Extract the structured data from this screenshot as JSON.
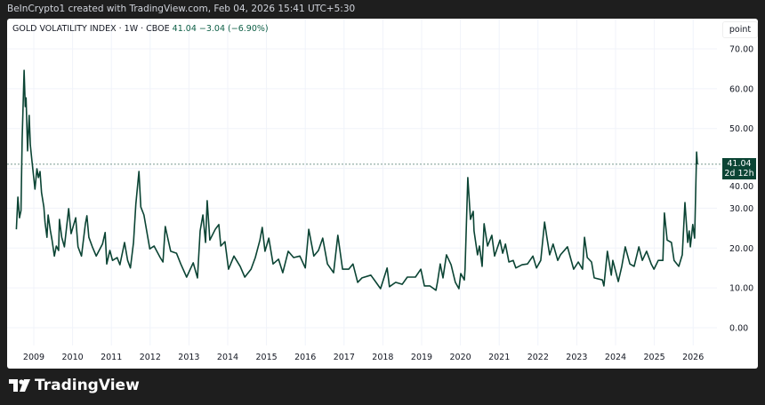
{
  "header": {
    "attribution": "BeInCrypto1 created with TradingView.com, Feb 04, 2026 15:41 UTC+5:30"
  },
  "legend": {
    "symbol": "GOLD VOLATILITY INDEX · 1W · CBOE",
    "last": "41.04",
    "change": "−3.04 (−6.90%)"
  },
  "axis_unit": "point",
  "price_label": {
    "value": "41.04",
    "countdown": "2d 12h"
  },
  "brand": "TradingView",
  "colors": {
    "line": "#0b4434",
    "price_box": "#0b4434",
    "change_text": "#0c5e45"
  },
  "chart_data": {
    "type": "line",
    "title": "GOLD VOLATILITY INDEX · 1W · CBOE",
    "xlabel": "",
    "ylabel": "point",
    "ylim": [
      -3,
      72
    ],
    "xlim": [
      2008.45,
      2026.6
    ],
    "grid": true,
    "y_ticks": [
      "0.00",
      "10.00",
      "20.00",
      "30.00",
      "40.00",
      "50.00",
      "60.00",
      "70.00"
    ],
    "x_ticks": [
      "2009",
      "2010",
      "2011",
      "2012",
      "2013",
      "2014",
      "2015",
      "2016",
      "2017",
      "2018",
      "2019",
      "2020",
      "2021",
      "2022",
      "2023",
      "2024",
      "2025",
      "2026"
    ],
    "last_value_line": 41.04,
    "series": [
      {
        "points": [
          [
            2008.55,
            24.7
          ],
          [
            2008.59,
            32.8
          ],
          [
            2008.63,
            27.6
          ],
          [
            2008.67,
            29.4
          ],
          [
            2008.7,
            47.3
          ],
          [
            2008.75,
            64.6
          ],
          [
            2008.78,
            55.5
          ],
          [
            2008.8,
            57.7
          ],
          [
            2008.84,
            44.4
          ],
          [
            2008.88,
            53.3
          ],
          [
            2008.91,
            45.9
          ],
          [
            2008.95,
            42.1
          ],
          [
            2009.03,
            34.8
          ],
          [
            2009.08,
            39.9
          ],
          [
            2009.12,
            37.7
          ],
          [
            2009.16,
            39.2
          ],
          [
            2009.2,
            33.9
          ],
          [
            2009.26,
            30.3
          ],
          [
            2009.29,
            26.5
          ],
          [
            2009.34,
            22.7
          ],
          [
            2009.37,
            28.3
          ],
          [
            2009.43,
            24.3
          ],
          [
            2009.47,
            22.0
          ],
          [
            2009.53,
            18.0
          ],
          [
            2009.58,
            20.5
          ],
          [
            2009.64,
            19.4
          ],
          [
            2009.66,
            27.2
          ],
          [
            2009.72,
            22.7
          ],
          [
            2009.79,
            20.3
          ],
          [
            2009.9,
            29.9
          ],
          [
            2009.96,
            23.6
          ],
          [
            2010.03,
            25.9
          ],
          [
            2010.08,
            27.6
          ],
          [
            2010.14,
            20.3
          ],
          [
            2010.23,
            18.0
          ],
          [
            2010.33,
            26.1
          ],
          [
            2010.37,
            28.1
          ],
          [
            2010.42,
            22.7
          ],
          [
            2010.51,
            20.3
          ],
          [
            2010.61,
            18.0
          ],
          [
            2010.77,
            21.0
          ],
          [
            2010.84,
            23.9
          ],
          [
            2010.88,
            16.0
          ],
          [
            2010.96,
            19.4
          ],
          [
            2011.03,
            16.9
          ],
          [
            2011.15,
            17.6
          ],
          [
            2011.22,
            15.8
          ],
          [
            2011.34,
            21.4
          ],
          [
            2011.42,
            16.9
          ],
          [
            2011.49,
            15.0
          ],
          [
            2011.57,
            21.4
          ],
          [
            2011.63,
            31.0
          ],
          [
            2011.71,
            39.2
          ],
          [
            2011.76,
            30.3
          ],
          [
            2011.84,
            28.3
          ],
          [
            2011.91,
            24.3
          ],
          [
            2011.99,
            19.8
          ],
          [
            2012.1,
            20.5
          ],
          [
            2012.26,
            17.6
          ],
          [
            2012.33,
            16.5
          ],
          [
            2012.39,
            25.4
          ],
          [
            2012.45,
            22.7
          ],
          [
            2012.53,
            19.2
          ],
          [
            2012.68,
            18.7
          ],
          [
            2012.79,
            16.0
          ],
          [
            2012.94,
            12.7
          ],
          [
            2013.11,
            16.3
          ],
          [
            2013.22,
            12.5
          ],
          [
            2013.29,
            24.3
          ],
          [
            2013.36,
            28.3
          ],
          [
            2013.43,
            21.4
          ],
          [
            2013.47,
            31.9
          ],
          [
            2013.54,
            22.0
          ],
          [
            2013.68,
            24.7
          ],
          [
            2013.77,
            25.9
          ],
          [
            2013.82,
            20.5
          ],
          [
            2013.93,
            21.6
          ],
          [
            2014.02,
            14.7
          ],
          [
            2014.16,
            18.0
          ],
          [
            2014.32,
            15.4
          ],
          [
            2014.44,
            12.7
          ],
          [
            2014.6,
            14.7
          ],
          [
            2014.71,
            17.6
          ],
          [
            2014.83,
            22.0
          ],
          [
            2014.89,
            25.2
          ],
          [
            2014.96,
            19.2
          ],
          [
            2015.06,
            22.5
          ],
          [
            2015.17,
            16.0
          ],
          [
            2015.31,
            17.2
          ],
          [
            2015.42,
            13.8
          ],
          [
            2015.56,
            19.2
          ],
          [
            2015.7,
            17.6
          ],
          [
            2015.86,
            18.0
          ],
          [
            2016.0,
            15.0
          ],
          [
            2016.09,
            24.7
          ],
          [
            2016.22,
            18.0
          ],
          [
            2016.34,
            19.4
          ],
          [
            2016.45,
            22.5
          ],
          [
            2016.57,
            16.0
          ],
          [
            2016.73,
            13.8
          ],
          [
            2016.84,
            23.2
          ],
          [
            2016.96,
            14.7
          ],
          [
            2017.12,
            14.7
          ],
          [
            2017.23,
            16.0
          ],
          [
            2017.35,
            11.4
          ],
          [
            2017.46,
            12.5
          ],
          [
            2017.69,
            13.2
          ],
          [
            2017.81,
            11.6
          ],
          [
            2017.94,
            9.8
          ],
          [
            2018.11,
            15.0
          ],
          [
            2018.17,
            10.3
          ],
          [
            2018.33,
            11.4
          ],
          [
            2018.5,
            10.9
          ],
          [
            2018.63,
            12.7
          ],
          [
            2018.84,
            12.7
          ],
          [
            2018.98,
            14.7
          ],
          [
            2019.07,
            10.5
          ],
          [
            2019.21,
            10.5
          ],
          [
            2019.37,
            9.4
          ],
          [
            2019.41,
            11.6
          ],
          [
            2019.48,
            16.0
          ],
          [
            2019.55,
            12.5
          ],
          [
            2019.64,
            18.3
          ],
          [
            2019.76,
            15.8
          ],
          [
            2019.87,
            11.4
          ],
          [
            2019.96,
            9.8
          ],
          [
            2020.01,
            13.6
          ],
          [
            2020.1,
            12.0
          ],
          [
            2020.12,
            14.7
          ],
          [
            2020.19,
            37.7
          ],
          [
            2020.26,
            27.2
          ],
          [
            2020.33,
            29.2
          ],
          [
            2020.35,
            24.3
          ],
          [
            2020.44,
            18.3
          ],
          [
            2020.49,
            20.5
          ],
          [
            2020.56,
            15.4
          ],
          [
            2020.61,
            26.1
          ],
          [
            2020.7,
            20.5
          ],
          [
            2020.81,
            23.2
          ],
          [
            2020.88,
            18.0
          ],
          [
            2021.02,
            22.0
          ],
          [
            2021.09,
            18.7
          ],
          [
            2021.16,
            21.0
          ],
          [
            2021.25,
            16.5
          ],
          [
            2021.36,
            16.9
          ],
          [
            2021.43,
            15.0
          ],
          [
            2021.59,
            15.8
          ],
          [
            2021.73,
            16.0
          ],
          [
            2021.87,
            18.0
          ],
          [
            2021.96,
            15.0
          ],
          [
            2022.07,
            16.9
          ],
          [
            2022.17,
            26.5
          ],
          [
            2022.23,
            22.7
          ],
          [
            2022.3,
            18.3
          ],
          [
            2022.39,
            21.0
          ],
          [
            2022.51,
            16.9
          ],
          [
            2022.58,
            18.3
          ],
          [
            2022.76,
            20.3
          ],
          [
            2022.92,
            14.7
          ],
          [
            2023.04,
            16.5
          ],
          [
            2023.15,
            14.7
          ],
          [
            2023.2,
            22.7
          ],
          [
            2023.27,
            17.6
          ],
          [
            2023.38,
            16.5
          ],
          [
            2023.45,
            12.5
          ],
          [
            2023.66,
            12.0
          ],
          [
            2023.7,
            10.5
          ],
          [
            2023.79,
            19.2
          ],
          [
            2023.89,
            13.2
          ],
          [
            2023.93,
            16.9
          ],
          [
            2024.07,
            11.6
          ],
          [
            2024.16,
            15.4
          ],
          [
            2024.25,
            20.3
          ],
          [
            2024.37,
            16.0
          ],
          [
            2024.48,
            15.4
          ],
          [
            2024.6,
            20.3
          ],
          [
            2024.69,
            16.9
          ],
          [
            2024.8,
            19.2
          ],
          [
            2024.92,
            16.0
          ],
          [
            2024.99,
            14.7
          ],
          [
            2025.1,
            16.9
          ],
          [
            2025.22,
            16.9
          ],
          [
            2025.26,
            28.8
          ],
          [
            2025.33,
            22.0
          ],
          [
            2025.44,
            21.4
          ],
          [
            2025.51,
            16.9
          ],
          [
            2025.63,
            15.4
          ],
          [
            2025.72,
            18.3
          ],
          [
            2025.79,
            31.4
          ],
          [
            2025.86,
            21.4
          ],
          [
            2025.9,
            24.3
          ],
          [
            2025.93,
            20.3
          ],
          [
            2025.99,
            25.9
          ],
          [
            2026.04,
            22.5
          ],
          [
            2026.09,
            44.1
          ],
          [
            2026.11,
            41.04
          ]
        ]
      }
    ]
  }
}
